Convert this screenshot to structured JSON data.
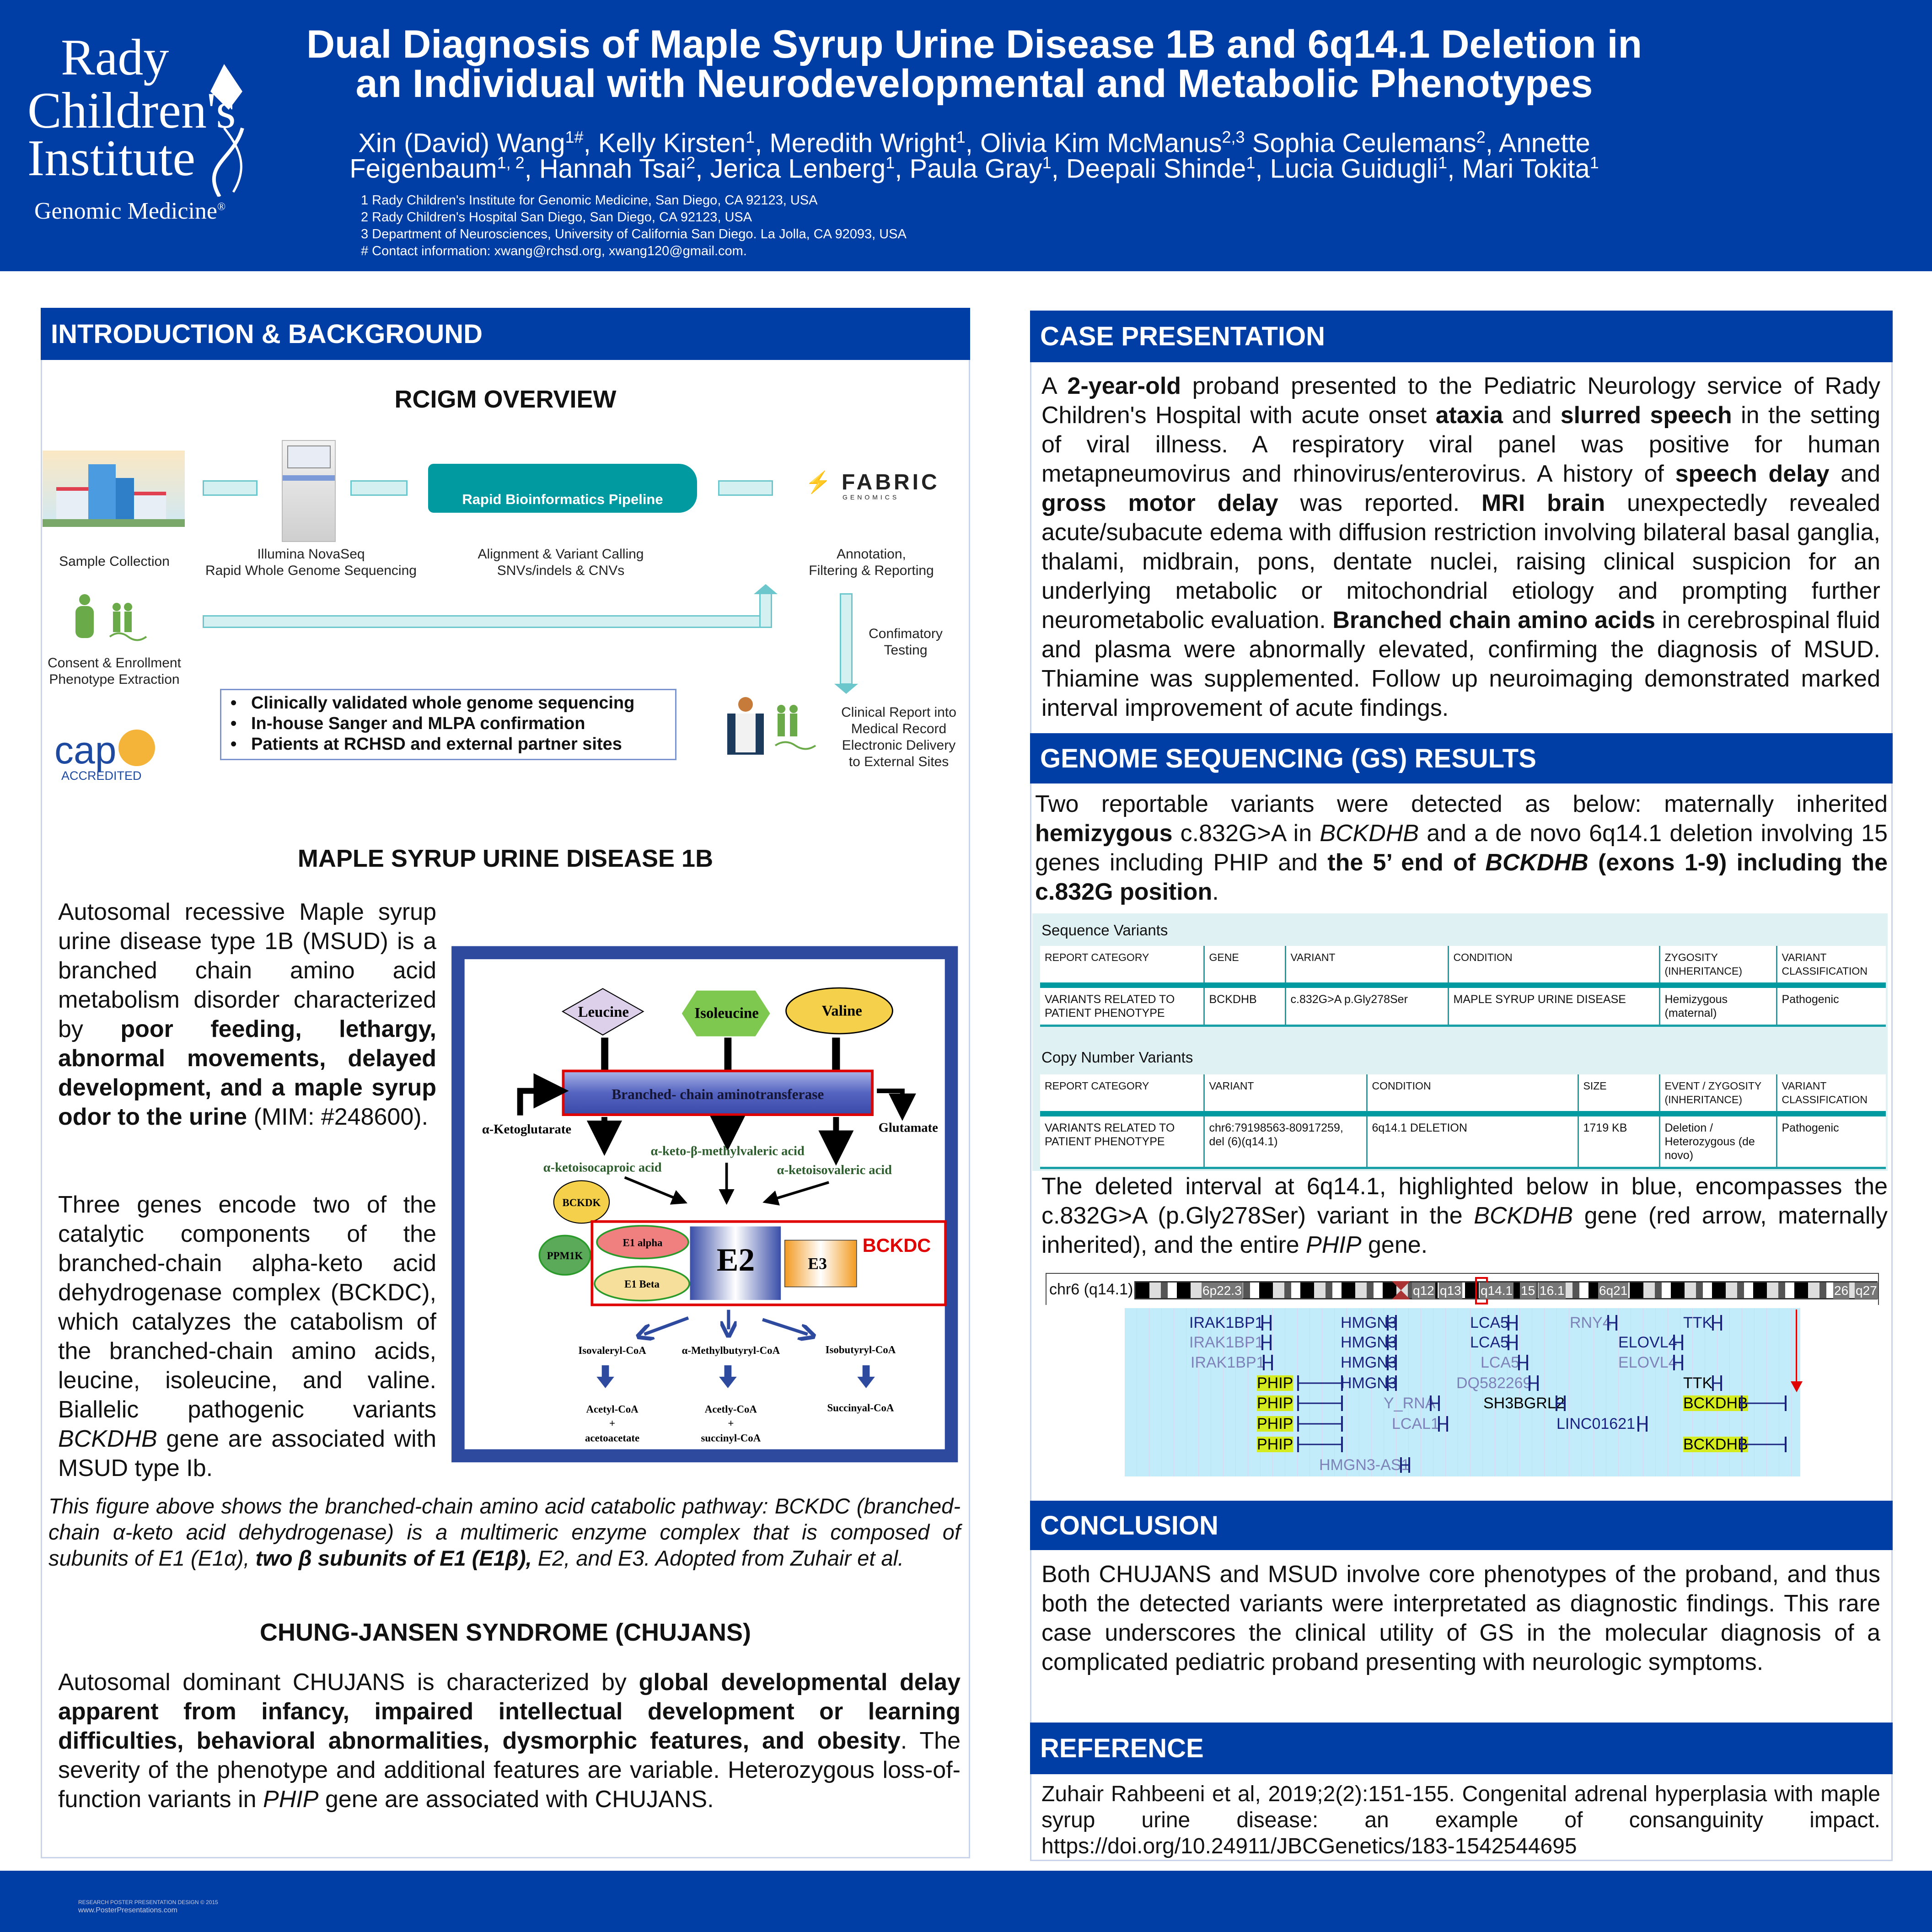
{
  "header": {
    "logo": {
      "line1": "Rady",
      "line2": "Children's",
      "line3": "Institute",
      "line4": "Genomic Medicine",
      "reg": "®"
    },
    "title_line1": "Dual Diagnosis of Maple Syrup Urine Disease 1B and 6q14.1 Deletion in",
    "title_line2": "an Individual with Neurodevelopmental and Metabolic Phenotypes",
    "authors_line1": [
      {
        "t": "Xin (David) Wang"
      },
      {
        "t": "1#",
        "sup": 1
      },
      {
        "t": ", Kelly Kirsten"
      },
      {
        "t": "1",
        "sup": 1
      },
      {
        "t": ", Meredith Wright"
      },
      {
        "t": "1",
        "sup": 1
      },
      {
        "t": ", Olivia Kim McManus"
      },
      {
        "t": "2,3",
        "sup": 1
      },
      {
        "t": " Sophia Ceulemans"
      },
      {
        "t": "2",
        "sup": 1
      },
      {
        "t": ", Annette"
      }
    ],
    "authors_line2": [
      {
        "t": "Feigenbaum"
      },
      {
        "t": "1, 2",
        "sup": 1
      },
      {
        "t": ", Hannah Tsai"
      },
      {
        "t": "2",
        "sup": 1
      },
      {
        "t": ", Jerica Lenberg"
      },
      {
        "t": "1",
        "sup": 1
      },
      {
        "t": ", Paula Gray"
      },
      {
        "t": "1",
        "sup": 1
      },
      {
        "t": ", Deepali Shinde"
      },
      {
        "t": "1",
        "sup": 1
      },
      {
        "t": ", Lucia Guidugli"
      },
      {
        "t": "1",
        "sup": 1
      },
      {
        "t": ", Mari Tokita"
      },
      {
        "t": "1",
        "sup": 1
      }
    ],
    "affiliations": [
      "1  Rady Children's Institute for Genomic Medicine, San Diego, CA 92123, USA",
      "2  Rady Children's Hospital San Diego, San Diego, CA 92123, USA",
      "3  Department of Neurosciences, University of California San Diego. La Jolla, CA 92093, USA",
      "#  Contact information: xwang@rchsd.org, xwang120@gmail.com."
    ]
  },
  "intro": {
    "heading": "INTRODUCTION & BACKGROUND",
    "overview_title": "RCIGM OVERVIEW",
    "flow": {
      "sample": "Sample Collection",
      "seq1": "Illumina NovaSeq",
      "seq2": "Rapid Whole Genome Sequencing",
      "pipeline": "Rapid Bioinformatics Pipeline",
      "align1": "Alignment & Variant Calling",
      "align2": "SNVs/indels & CNVs",
      "fabric": "FABRIC",
      "fabric_sub": "GENOMICS",
      "annot1": "Annotation,",
      "annot2": "Filtering & Reporting",
      "consent1": "Consent & Enrollment",
      "consent2": "Phenotype Extraction",
      "confirm1": "Confimatory",
      "confirm2": "Testing",
      "bullets": [
        "Clinically validated whole genome sequencing",
        "In-house Sanger and MLPA confirmation",
        "Patients at RCHSD and external partner sites"
      ],
      "cap": "cap",
      "cap_sub": "ACCREDITED",
      "report": [
        "Clinical Report into",
        "Medical Record",
        "Electronic Delivery",
        "to External Sites"
      ]
    },
    "msud_title": "MAPLE SYRUP URINE DISEASE 1B",
    "msud_p1": [
      {
        "t": "Autosomal recessive Maple syrup urine disease type 1B (MSUD) is a branched chain amino acid metabolism disorder characterized by "
      },
      {
        "t": "poor feeding, lethargy, abnormal movements, delayed development, and a maple syrup odor to the urine",
        "b": 1
      },
      {
        "t": " (MIM: #248600)."
      }
    ],
    "msud_p2": [
      {
        "t": "Three genes encode two of the catalytic components of the branched-chain alpha-keto acid dehydrogenase complex (BCKDC), which catalyzes the catabolism of the branched-chain amino acids, leucine, isoleucine, and valine. Biallelic pathogenic variants "
      },
      {
        "t": "BCKDHB",
        "i": 1
      },
      {
        "t": " gene are associated with MSUD type Ib."
      }
    ],
    "pathway": {
      "leucine": "Leucine",
      "isoleucine": "Isoleucine",
      "valine": "Valine",
      "bcat": "Branched- chain aminotransferase",
      "akg": "α-Ketoglutarate",
      "glutamate": "Glutamate",
      "kmv": "α-keto-β-methylvaleric acid",
      "kic": "α-ketoisocaproic acid",
      "kiv": "α-ketoisovaleric acid",
      "bckdk": "BCKDK",
      "ppm1k": "PPM1K",
      "e1a": "E1 alpha",
      "e1b": "E1 Beta",
      "e2": "E2",
      "e3": "E3",
      "bckdc": "BCKDC",
      "p1": "Isovaleryl-CoA",
      "p2": "α-Methylbutyryl-CoA",
      "p3": "Isobutyryl-CoA",
      "f1": [
        "Acetyl-CoA",
        "+",
        "acetoacetate"
      ],
      "f2": [
        "Acetly-CoA",
        "+",
        "succinyl-CoA"
      ],
      "f3": [
        "Succinyal-CoA"
      ]
    },
    "caption": [
      {
        "t": "This figure above shows the branched-chain amino acid catabolic pathway: BCKDC (branched-chain α-keto acid dehydrogenase) is a multimeric enzyme complex that is composed of subunits of E1 (E1α), "
      },
      {
        "t": "two β subunits of E1 (E1β),",
        "b": 1
      },
      {
        "t": " E2, and E3. Adopted from Zuhair et al."
      }
    ],
    "chujans_title": "CHUNG-JANSEN SYNDROME (CHUJANS)",
    "chujans_p": [
      {
        "t": "Autosomal dominant CHUJANS is characterized by "
      },
      {
        "t": "global developmental delay apparent from infancy, impaired intellectual development or learning difficulties, behavioral abnormalities, dysmorphic features, and obesity",
        "b": 1
      },
      {
        "t": ". The severity of the phenotype and additional features are variable. Heterozygous loss-of-function variants in "
      },
      {
        "t": "PHIP",
        "i": 1
      },
      {
        "t": " gene are associated with CHUJANS."
      }
    ]
  },
  "case": {
    "heading": "CASE PRESENTATION",
    "text": [
      {
        "t": "A "
      },
      {
        "t": "2-year-old",
        "b": 1
      },
      {
        "t": " proband presented to the Pediatric Neurology service of Rady Children's Hospital with acute onset "
      },
      {
        "t": "ataxia",
        "b": 1
      },
      {
        "t": " and "
      },
      {
        "t": "slurred speech",
        "b": 1
      },
      {
        "t": " in the setting of viral illness. A respiratory viral panel was positive for human metapneumovirus and rhinovirus/enterovirus. A history of "
      },
      {
        "t": "speech delay",
        "b": 1
      },
      {
        "t": " and "
      },
      {
        "t": "gross motor delay",
        "b": 1
      },
      {
        "t": " was reported. "
      },
      {
        "t": "MRI brain",
        "b": 1
      },
      {
        "t": " unexpectedly revealed acute/subacute edema with diffusion restriction involving bilateral basal ganglia, thalami, midbrain, pons, dentate nuclei, raising clinical suspicion for an underlying metabolic or mitochondrial etiology and prompting further neurometabolic evaluation. "
      },
      {
        "t": "Branched chain amino acids",
        "b": 1
      },
      {
        "t": " in cerebrospinal fluid and plasma were abnormally elevated, confirming the diagnosis of MSUD. Thiamine was supplemented. Follow up neuroimaging demonstrated marked interval improvement of acute findings."
      }
    ]
  },
  "gs": {
    "heading": "GENOME SEQUENCING (GS) RESULTS",
    "text": [
      {
        "t": "Two reportable variants were detected as below: maternally inherited "
      },
      {
        "t": "hemizygous",
        "b": 1
      },
      {
        "t": " c.832G>A in "
      },
      {
        "t": "BCKDHB",
        "i": 1
      },
      {
        "t": " and a de novo 6q14.1 deletion involving 15 genes including PHIP and "
      },
      {
        "t": "the 5’ end of ",
        "b": 1
      },
      {
        "t": "BCKDHB",
        "b": 1,
        "i": 1
      },
      {
        "t": " (exons 1-9) including the c.832G position",
        "b": 1
      },
      {
        "t": "."
      }
    ],
    "seq_title": "Sequence Variants",
    "seq_headers": [
      "REPORT CATEGORY",
      "GENE",
      "VARIANT",
      "CONDITION",
      "ZYGOSITY (INHERITANCE)",
      "VARIANT CLASSIFICATION"
    ],
    "seq_row": [
      "VARIANTS RELATED TO PATIENT PHENOTYPE",
      "BCKDHB",
      "c.832G>A p.Gly278Ser",
      "MAPLE SYRUP URINE DISEASE",
      "Hemizygous (maternal)",
      "Pathogenic"
    ],
    "cnv_title": "Copy Number Variants",
    "cnv_headers": [
      "REPORT CATEGORY",
      "VARIANT",
      "CONDITION",
      "SIZE",
      "EVENT / ZYGOSITY (INHERITANCE)",
      "VARIANT CLASSIFICATION"
    ],
    "cnv_row": [
      "VARIANTS RELATED TO PATIENT PHENOTYPE",
      "chr6:79198563-80917259, del (6)(q14.1)",
      "6q14.1 DELETION",
      "1719 KB",
      "Deletion / Heterozygous (de novo)",
      "Pathogenic"
    ],
    "text2": [
      {
        "t": "The deleted interval at 6q14.1, highlighted below in blue, encompasses the c.832G>A (p.Gly278Ser) variant in the "
      },
      {
        "t": "BCKDHB",
        "i": 1
      },
      {
        "t": " gene (red arrow, maternally inherited), and the entire "
      },
      {
        "t": "PHIP",
        "i": 1
      },
      {
        "t": " gene."
      }
    ],
    "browser": {
      "chrom_label": "chr6 (q14.1)",
      "bands": [
        "6p22.3",
        "q12",
        "q13",
        "q14.1",
        "15",
        "16.1",
        "6q21",
        "26",
        "q27"
      ],
      "genes": [
        {
          "name": "IRAK1BP1",
          "row": 0,
          "col": 330,
          "style": ""
        },
        {
          "name": "HMGN3",
          "row": 0,
          "col": 661,
          "style": ""
        },
        {
          "name": "LCA5",
          "row": 0,
          "col": 944,
          "style": ""
        },
        {
          "name": "RNY4",
          "row": 0,
          "col": 1162,
          "style": "light"
        },
        {
          "name": "TTK",
          "row": 0,
          "col": 1410,
          "style": ""
        },
        {
          "name": "IRAK1BP1",
          "row": 1,
          "col": 330,
          "style": "light"
        },
        {
          "name": "HMGN3",
          "row": 1,
          "col": 661,
          "style": ""
        },
        {
          "name": "LCA5",
          "row": 1,
          "col": 944,
          "style": ""
        },
        {
          "name": "ELOVL4",
          "row": 1,
          "col": 1268,
          "style": ""
        },
        {
          "name": "IRAK1BP1",
          "row": 2,
          "col": 333,
          "style": "light"
        },
        {
          "name": "HMGN3",
          "row": 2,
          "col": 661,
          "style": ""
        },
        {
          "name": "LCA5",
          "row": 2,
          "col": 967,
          "style": "light"
        },
        {
          "name": "ELOVL4",
          "row": 2,
          "col": 1268,
          "style": "light"
        },
        {
          "name": "PHIP",
          "row": 3,
          "col": 478,
          "style": "hl"
        },
        {
          "name": "HMGN3",
          "row": 3,
          "col": 661,
          "style": ""
        },
        {
          "name": "DQ582269",
          "row": 3,
          "col": 914,
          "style": "light"
        },
        {
          "name": "TTK",
          "row": 3,
          "col": 1410,
          "style": "black"
        },
        {
          "name": "PHIP",
          "row": 4,
          "col": 478,
          "style": "hl"
        },
        {
          "name": "Y_RNA",
          "row": 4,
          "col": 755,
          "style": "light"
        },
        {
          "name": "SH3BGRL2",
          "row": 4,
          "col": 973,
          "style": "black"
        },
        {
          "name": "BCKDHB",
          "row": 4,
          "col": 1410,
          "style": "hl"
        },
        {
          "name": "PHIP",
          "row": 5,
          "col": 478,
          "style": "hl"
        },
        {
          "name": "LCAL1",
          "row": 5,
          "col": 773,
          "style": "light"
        },
        {
          "name": "LINC01621",
          "row": 5,
          "col": 1133,
          "style": ""
        },
        {
          "name": "PHIP",
          "row": 6,
          "col": 478,
          "style": "hl"
        },
        {
          "name": "BCKDHB",
          "row": 6,
          "col": 1410,
          "style": "hl"
        },
        {
          "name": "HMGN3-AS1",
          "row": 7,
          "col": 614,
          "style": "light"
        }
      ]
    }
  },
  "conclusion": {
    "heading": "CONCLUSION",
    "text": "Both CHUJANS and MSUD involve core phenotypes of the proband, and thus both the detected variants were interpretated as diagnostic findings. This rare case underscores the clinical utility of GS in the molecular diagnosis of a complicated pediatric proband presenting with neurologic symptoms."
  },
  "reference": {
    "heading": "REFERENCE",
    "text": "Zuhair Rahbeeni et al, 2019;2(2):151-155. Congenital adrenal hyperplasia with maple syrup urine disease: an example of consanguinity impact.",
    "link": "https://doi.org/10.24911/JBCGenetics/183-1542544695"
  },
  "footer": {
    "line1": "RESEARCH POSTER PRESENTATION DESIGN © 2015",
    "line2": "www.PosterPresentations.com"
  },
  "colors": {
    "brand_blue": "#003da5",
    "teal": "#009aa0",
    "highlight_blue": "#c2ecfa",
    "gene_highlight": "#d4ec1e",
    "red": "#e00000"
  }
}
